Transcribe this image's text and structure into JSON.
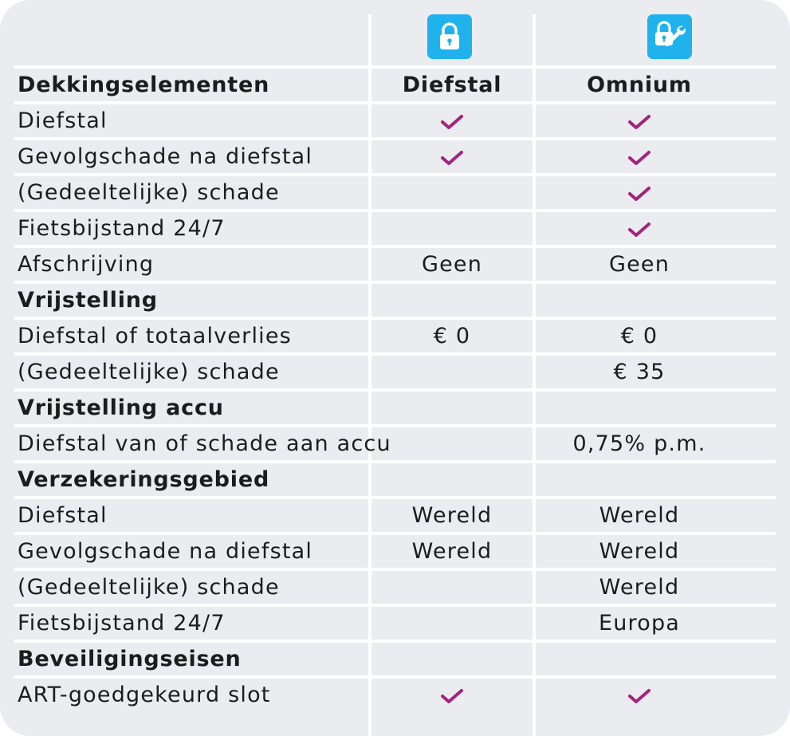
{
  "header": {
    "icons": [
      {
        "name": "lock-icon",
        "color": "#1fb2ec"
      },
      {
        "name": "lock-wrench-icon",
        "color": "#1fb2ec"
      }
    ],
    "col_label": "Dekkingselementen",
    "col_a": "Diefstal",
    "col_b": "Omnium"
  },
  "check_color": "#a2247d",
  "rows": [
    {
      "label": "Diefstal",
      "a": "check",
      "b": "check"
    },
    {
      "label": "Gevolgschade na diefstal",
      "a": "check",
      "b": "check"
    },
    {
      "label": "(Gedeeltelijke) schade",
      "a": "",
      "b": "check"
    },
    {
      "label": "Fietsbijstand 24/7",
      "a": "",
      "b": "check"
    },
    {
      "label": "Afschrijving",
      "a": "Geen",
      "b": "Geen"
    },
    {
      "label": "Vrijstelling",
      "section": true
    },
    {
      "label": "Diefstal of totaalverlies",
      "a": "€ 0",
      "b": "€ 0"
    },
    {
      "label": "(Gedeeltelijke) schade",
      "a": "",
      "b": "€ 35"
    },
    {
      "label": "Vrijstelling accu",
      "section": true
    },
    {
      "label": "Diefstal van of schade aan accu",
      "a": "",
      "b": "0,75% p.m."
    },
    {
      "label": "Verzekeringsgebied",
      "section": true
    },
    {
      "label": "Diefstal",
      "a": "Wereld",
      "b": "Wereld"
    },
    {
      "label": "Gevolgschade na diefstal",
      "a": "Wereld",
      "b": "Wereld"
    },
    {
      "label": "(Gedeeltelijke) schade",
      "a": "",
      "b": "Wereld"
    },
    {
      "label": "Fietsbijstand 24/7",
      "a": "",
      "b": "Europa"
    },
    {
      "label": "Beveiligingseisen",
      "section": true
    },
    {
      "label": "ART-goedgekeurd slot",
      "a": "check",
      "b": "check"
    }
  ]
}
